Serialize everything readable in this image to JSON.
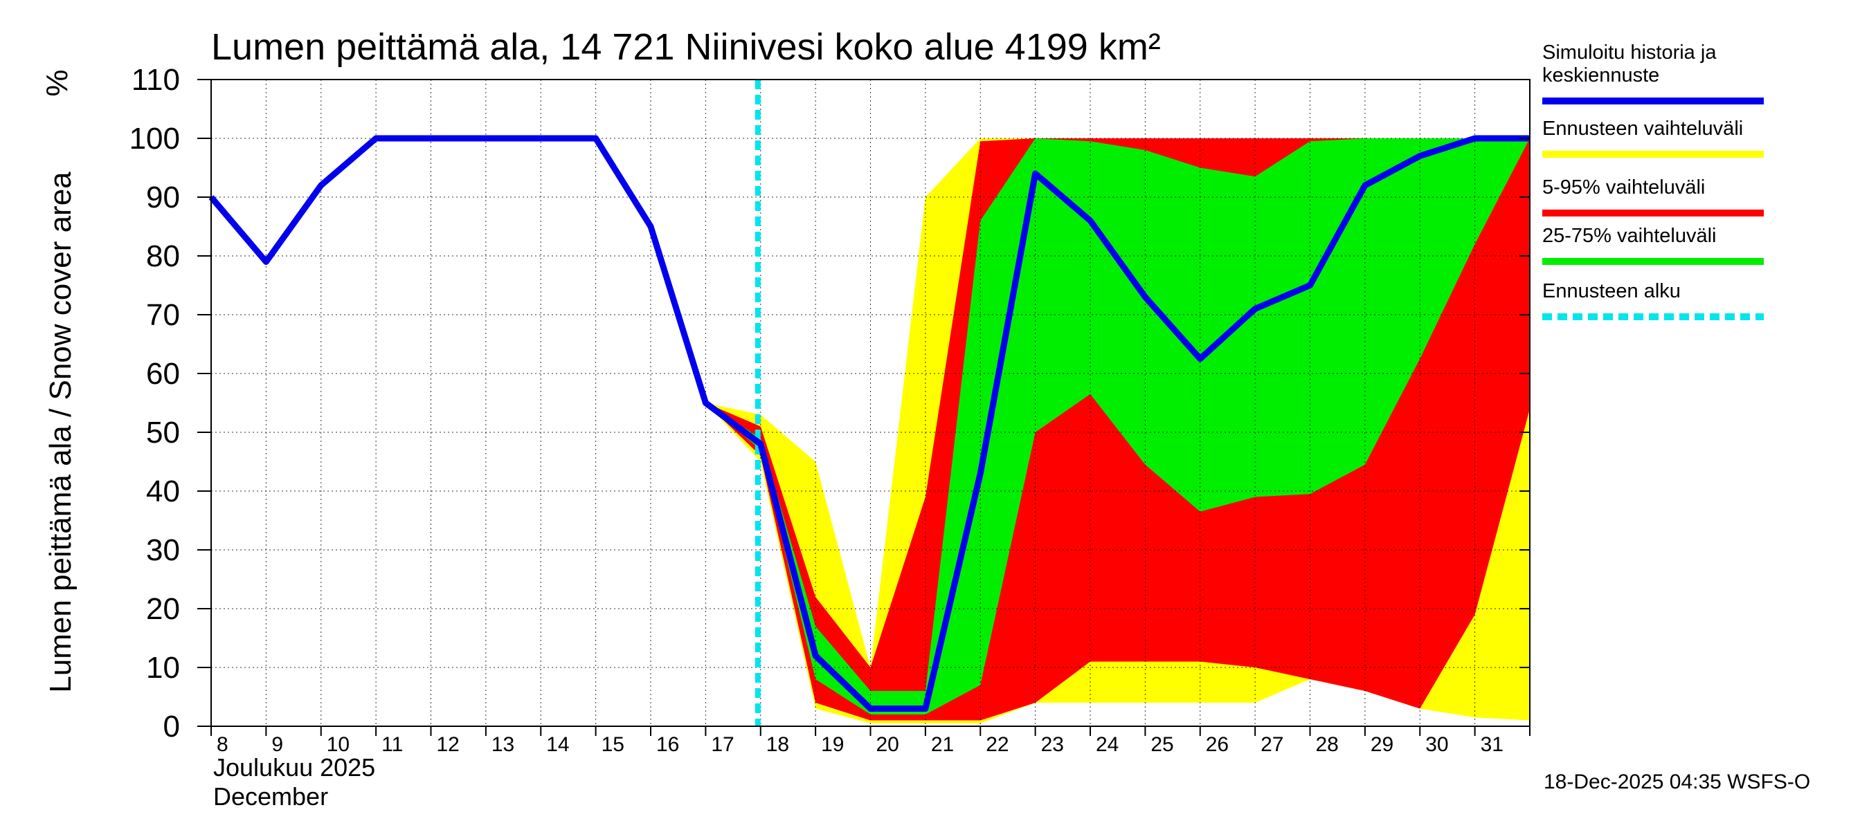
{
  "chart_data": {
    "type": "area",
    "title": "Lumen peittämä ala, 14 721 Niinivesi koko alue 4199 km²",
    "ylabel": "Lumen peittämä ala / Snow cover area",
    "yunit": "%",
    "ylim": [
      0,
      110
    ],
    "yticks": [
      0,
      10,
      20,
      30,
      40,
      50,
      60,
      70,
      80,
      90,
      100,
      110
    ],
    "xlim": [
      8,
      32
    ],
    "xticks": [
      8,
      9,
      10,
      11,
      12,
      13,
      14,
      15,
      16,
      17,
      18,
      19,
      20,
      21,
      22,
      23,
      24,
      25,
      26,
      27,
      28,
      29,
      30,
      31
    ],
    "xlabel_month_fi": "Joulukuu  2025",
    "xlabel_month_en": "December",
    "forecast_start": 17.95,
    "series": {
      "history": {
        "name": "Simuloitu historia ja keskiennuste",
        "color": "#0000ee",
        "x": [
          8,
          9,
          10,
          11,
          12,
          13,
          14,
          15,
          16,
          17,
          18,
          19,
          20,
          21,
          22,
          23,
          24,
          25,
          26,
          27,
          28,
          29,
          30,
          31,
          32
        ],
        "y": [
          90,
          79,
          92,
          100,
          100,
          100,
          100,
          100,
          85,
          55,
          48,
          12,
          3,
          3,
          43,
          94,
          86,
          73,
          62.5,
          71,
          75,
          92,
          97,
          100,
          100
        ]
      },
      "range_total": {
        "name": "Ennusteen vaihteluväli",
        "color": "#ffff00",
        "x": [
          17,
          18,
          19,
          20,
          21,
          22,
          23,
          24,
          25,
          26,
          27,
          28,
          29,
          30,
          31,
          32
        ],
        "upper": [
          55,
          53,
          45,
          10,
          90,
          100,
          100,
          100,
          100,
          100,
          100,
          100,
          100,
          100,
          100,
          100
        ],
        "lower": [
          55,
          45,
          3,
          0.5,
          0.5,
          0.5,
          4,
          4,
          4,
          4,
          4,
          8,
          6,
          3,
          1.5,
          1
        ]
      },
      "range_5_95": {
        "name": "5-95% vaihteluväli",
        "color": "#ff0000",
        "x": [
          17,
          18,
          19,
          20,
          21,
          22,
          23,
          24,
          25,
          26,
          27,
          28,
          29,
          30,
          31,
          32
        ],
        "upper": [
          55,
          51,
          22,
          10,
          39,
          99.5,
          100,
          100,
          100,
          100,
          100,
          100,
          100,
          100,
          100,
          100
        ],
        "lower": [
          55,
          46,
          4,
          1,
          1,
          1,
          4,
          11,
          11,
          11,
          10,
          8,
          6,
          3,
          19,
          54
        ]
      },
      "range_25_75": {
        "name": "25-75% vaihteluväli",
        "color": "#00ee00",
        "x": [
          17,
          18,
          19,
          20,
          21,
          22,
          23,
          24,
          25,
          26,
          27,
          28,
          29,
          30,
          31,
          32
        ],
        "upper": [
          55,
          49,
          17,
          6,
          6,
          86,
          100,
          99.5,
          98,
          95,
          93.5,
          99.5,
          100,
          100,
          100,
          100
        ],
        "lower": [
          55,
          47,
          8,
          2,
          2,
          7,
          50,
          56.5,
          44.5,
          36.5,
          39,
          39.5,
          44.5,
          62.5,
          82,
          100
        ]
      },
      "forecast_start_marker": {
        "name": "Ennusteen alku",
        "color": "#00e5ee"
      }
    },
    "legend_position": "right"
  },
  "footer": {
    "timestamp": "18-Dec-2025 04:35 WSFS-O"
  }
}
